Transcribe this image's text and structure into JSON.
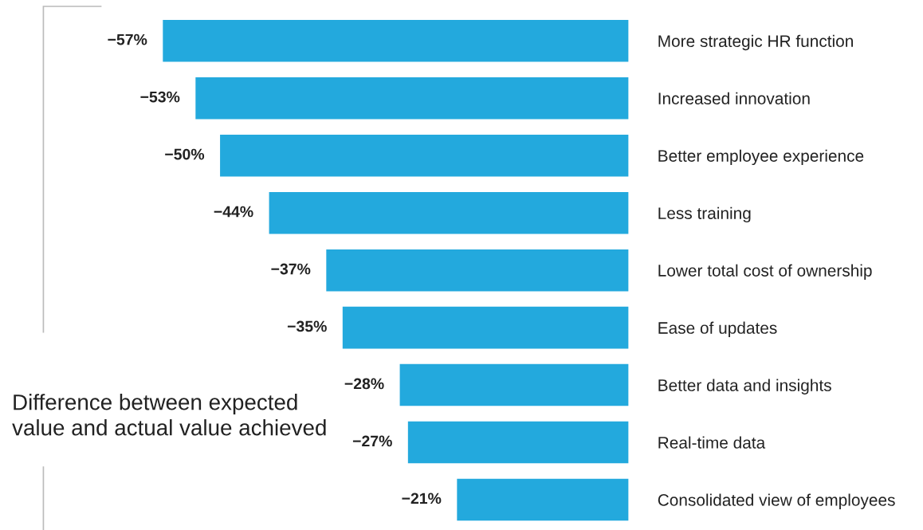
{
  "chart_data": {
    "type": "bar",
    "orientation": "horizontal",
    "ylabel": "Difference between expected value and actual value achieved",
    "categories": [
      "More strategic HR function",
      "Increased innovation",
      "Better employee experience",
      "Less training",
      "Lower total cost of ownership",
      "Ease of updates",
      "Better data and insights",
      "Real-time data",
      "Consolidated view of employees"
    ],
    "values": [
      -57,
      -53,
      -50,
      -44,
      -37,
      -35,
      -28,
      -27,
      -21
    ],
    "value_labels": [
      "−57%",
      "−53%",
      "−50%",
      "−44%",
      "−37%",
      "−35%",
      "−28%",
      "−27%",
      "−21%"
    ],
    "color": "#23a9dd",
    "tick_labels": "y",
    "grid": false,
    "legend": false
  }
}
